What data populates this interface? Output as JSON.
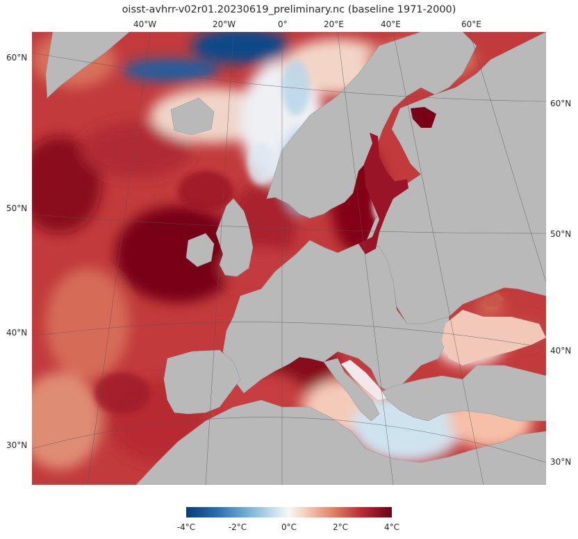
{
  "title": "oisst-avhrr-v02r01.20230619_preliminary.nc (baseline 1971-2000)",
  "top_lon_labels": [
    "40°W",
    "20°W",
    "0°",
    "20°E",
    "40°E",
    "60°E"
  ],
  "left_lat_labels": [
    "60°N",
    "50°N",
    "40°N",
    "30°N"
  ],
  "right_lat_labels": [
    "60°N",
    "50°N",
    "40°N",
    "30°N"
  ],
  "colorbar": {
    "ticks": [
      "-4°C",
      "-2°C",
      "0°C",
      "2°C",
      "4°C"
    ],
    "range": [
      -4,
      4
    ],
    "colormap": "RdBu_r"
  },
  "colors": {
    "land": "#b9b9b9",
    "deep_warm": "#730019",
    "warm": "#b5242f",
    "mild_warm": "#e38b72",
    "neutral": "#f6f1ef",
    "cool": "#8fbfdc",
    "deep_cool": "#0b4b8a"
  }
}
